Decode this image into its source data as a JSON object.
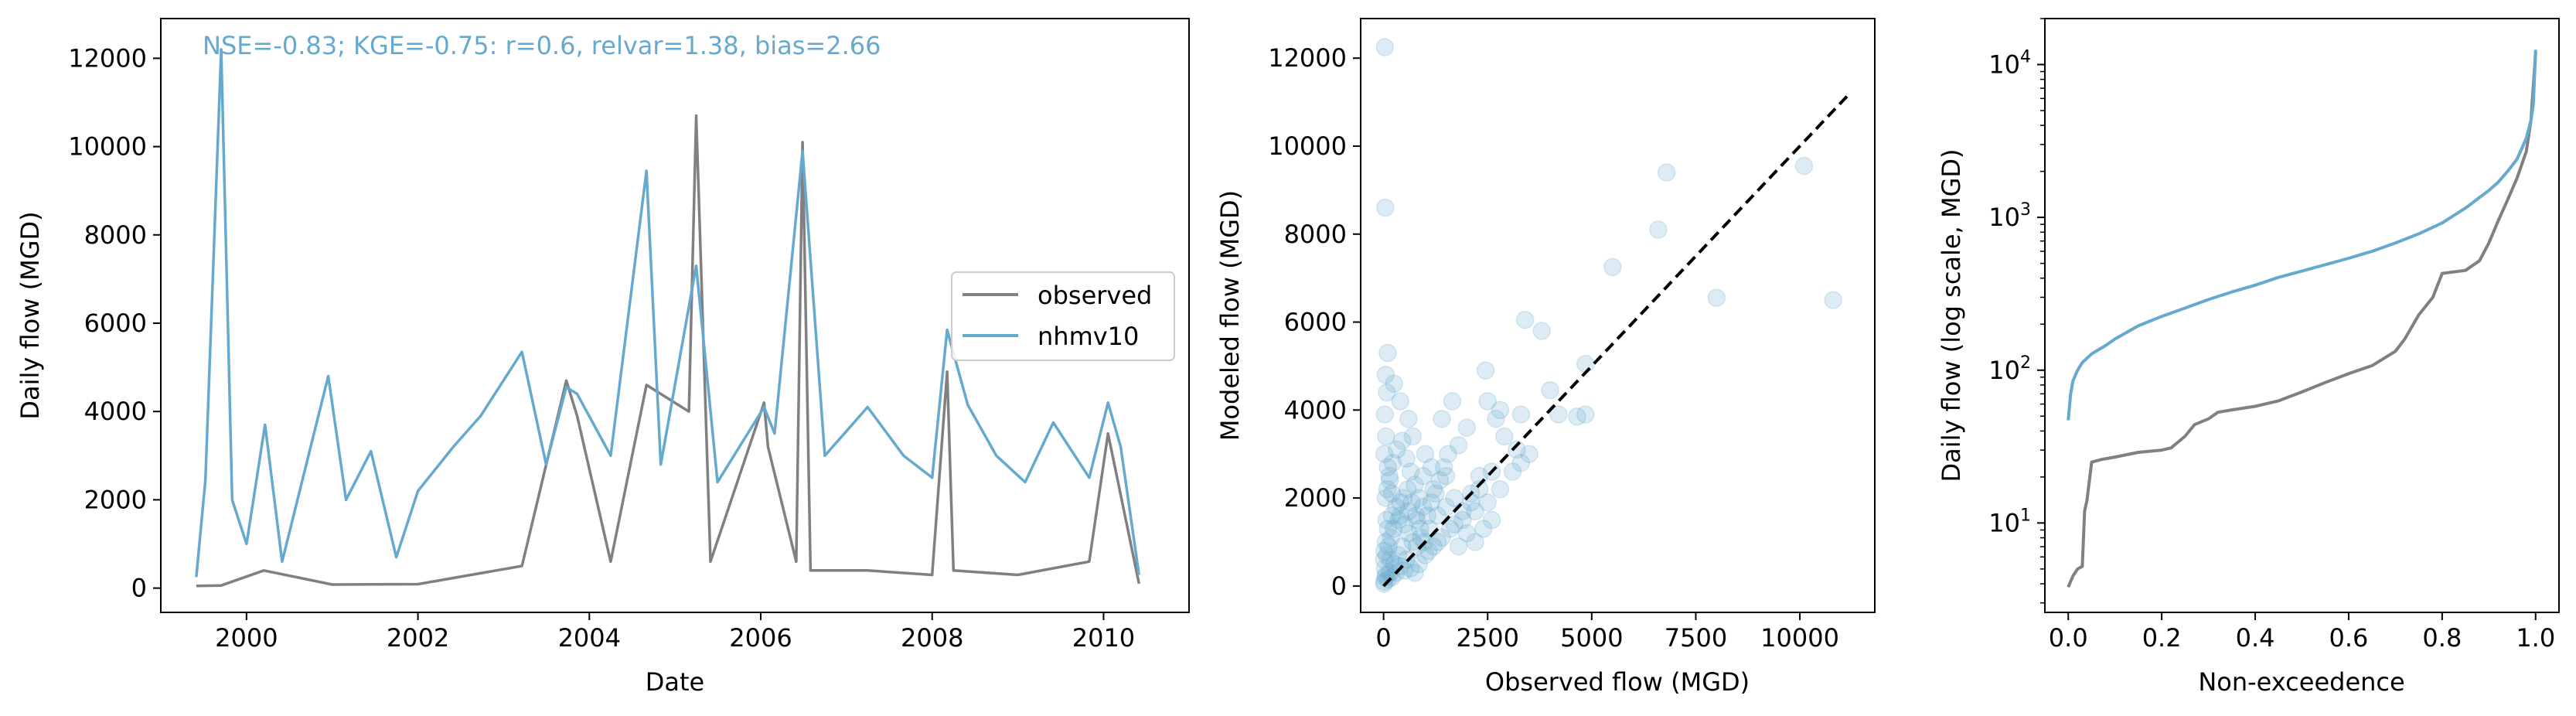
{
  "colors": {
    "observed": "#808080",
    "modeled": "#66a9cf",
    "identity_line": "#000000",
    "axes": "#000000"
  },
  "chart_data": [
    {
      "type": "line",
      "xlabel": "Date",
      "ylabel": "Daily flow (MGD)",
      "annotation": "NSE=-0.83; KGE=-0.75: r=0.6, relvar=1.38, bias=2.66",
      "xlim": [
        "1999-01-01",
        "2010-12-31"
      ],
      "ylim": [
        -550,
        12900
      ],
      "x_ticks": [
        {
          "value": "2000-01-01",
          "label": "2000"
        },
        {
          "value": "2002-01-01",
          "label": "2002"
        },
        {
          "value": "2004-01-01",
          "label": "2004"
        },
        {
          "value": "2006-01-01",
          "label": "2006"
        },
        {
          "value": "2008-01-01",
          "label": "2008"
        },
        {
          "value": "2010-01-01",
          "label": "2010"
        }
      ],
      "y_ticks": [
        0,
        2000,
        4000,
        6000,
        8000,
        10000,
        12000
      ],
      "legend": {
        "placement": "center-right",
        "entries": [
          "observed",
          "nhmv10"
        ]
      },
      "series": [
        {
          "name": "observed",
          "color": "#808080",
          "x": [
            "1999-06-01",
            "1999-09-15",
            "2000-03-15",
            "2001-01-01",
            "2002-01-01",
            "2003-03-20",
            "2003-09-25",
            "2003-11-10",
            "2004-04-01",
            "2004-09-01",
            "2005-03-01",
            "2005-04-01",
            "2005-06-01",
            "2006-01-15",
            "2006-02-01",
            "2006-06-01",
            "2006-06-28",
            "2006-08-01",
            "2007-04-01",
            "2008-01-01",
            "2008-03-05",
            "2008-04-01",
            "2009-01-01",
            "2009-11-01",
            "2010-01-20",
            "2010-06-01"
          ],
          "y": [
            50,
            60,
            400,
            80,
            90,
            500,
            4700,
            3900,
            600,
            4600,
            4000,
            10700,
            600,
            4200,
            3200,
            600,
            10100,
            400,
            400,
            300,
            4900,
            400,
            300,
            600,
            3500,
            100
          ]
        },
        {
          "name": "nhmv10",
          "color": "#66a9cf",
          "x": [
            "1999-06-01",
            "1999-07-10",
            "1999-09-15",
            "1999-11-01",
            "2000-01-01",
            "2000-03-20",
            "2000-06-01",
            "2000-12-15",
            "2001-03-01",
            "2001-06-15",
            "2001-10-01",
            "2002-01-01",
            "2002-06-01",
            "2002-09-25",
            "2003-03-20",
            "2003-07-01",
            "2003-09-25",
            "2003-11-10",
            "2004-04-01",
            "2004-09-01",
            "2004-11-01",
            "2005-04-01",
            "2005-07-01",
            "2006-01-15",
            "2006-03-01",
            "2006-06-28",
            "2006-10-01",
            "2007-04-01",
            "2007-09-01",
            "2008-01-01",
            "2008-03-05",
            "2008-06-01",
            "2008-10-01",
            "2009-02-01",
            "2009-06-01",
            "2009-11-01",
            "2010-01-20",
            "2010-03-15",
            "2010-06-01"
          ],
          "y": [
            250,
            2450,
            12200,
            2000,
            1000,
            3700,
            600,
            4800,
            2000,
            3100,
            700,
            2200,
            3200,
            3900,
            5350,
            2800,
            4550,
            4400,
            3000,
            9450,
            2800,
            7300,
            2400,
            4100,
            3500,
            9900,
            3000,
            4100,
            3000,
            2500,
            5850,
            4150,
            3000,
            2400,
            3750,
            2500,
            4200,
            3200,
            300
          ]
        }
      ]
    },
    {
      "type": "scatter",
      "xlabel": "Observed flow (MGD)",
      "ylabel": "Modeled flow (MGD)",
      "xlim": [
        -550,
        11800
      ],
      "ylim": [
        -600,
        12900
      ],
      "x_ticks": [
        0,
        2500,
        5000,
        7500,
        10000
      ],
      "y_ticks": [
        0,
        2000,
        4000,
        6000,
        8000,
        10000,
        12000
      ],
      "identity_line": [
        [
          0,
          0
        ],
        [
          11200,
          11200
        ]
      ],
      "points": [
        [
          30,
          12250
        ],
        [
          40,
          8600
        ],
        [
          6800,
          9400
        ],
        [
          10100,
          9550
        ],
        [
          6600,
          8100
        ],
        [
          5500,
          7250
        ],
        [
          8000,
          6550
        ],
        [
          10800,
          6500
        ],
        [
          3400,
          6050
        ],
        [
          3800,
          5800
        ],
        [
          4850,
          5050
        ],
        [
          2450,
          4900
        ],
        [
          4000,
          4450
        ],
        [
          4200,
          3900
        ],
        [
          4650,
          3850
        ],
        [
          4850,
          3900
        ],
        [
          3300,
          3900
        ],
        [
          2700,
          3800
        ],
        [
          2500,
          4200
        ],
        [
          2800,
          4000
        ],
        [
          2900,
          3400
        ],
        [
          3200,
          3100
        ],
        [
          3500,
          3000
        ],
        [
          2000,
          3600
        ],
        [
          1650,
          4200
        ],
        [
          1400,
          3800
        ],
        [
          1800,
          3200
        ],
        [
          1500,
          2500
        ],
        [
          1200,
          2200
        ],
        [
          2100,
          2100
        ],
        [
          2300,
          2500
        ],
        [
          1000,
          3000
        ],
        [
          700,
          3400
        ],
        [
          600,
          3800
        ],
        [
          400,
          4200
        ],
        [
          250,
          4600
        ],
        [
          100,
          5300
        ],
        [
          50,
          4800
        ],
        [
          80,
          4400
        ],
        [
          30,
          3900
        ],
        [
          60,
          3400
        ],
        [
          20,
          3000
        ],
        [
          100,
          2700
        ],
        [
          150,
          2400
        ],
        [
          200,
          2100
        ],
        [
          50,
          2000
        ],
        [
          300,
          1800
        ],
        [
          400,
          1600
        ],
        [
          500,
          1400
        ],
        [
          600,
          1200
        ],
        [
          700,
          1000
        ],
        [
          800,
          900
        ],
        [
          900,
          1100
        ],
        [
          1100,
          1300
        ],
        [
          1300,
          1600
        ],
        [
          1500,
          1800
        ],
        [
          1700,
          2000
        ],
        [
          1900,
          1500
        ],
        [
          2200,
          1700
        ],
        [
          2500,
          1900
        ],
        [
          1000,
          700
        ],
        [
          1200,
          900
        ],
        [
          1400,
          1100
        ],
        [
          1600,
          1300
        ],
        [
          2000,
          1200
        ],
        [
          800,
          1500
        ],
        [
          600,
          1700
        ],
        [
          400,
          1900
        ],
        [
          200,
          1600
        ],
        [
          100,
          1300
        ],
        [
          50,
          1000
        ],
        [
          20,
          800
        ],
        [
          10,
          600
        ],
        [
          30,
          400
        ],
        [
          60,
          250
        ],
        [
          100,
          150
        ],
        [
          150,
          300
        ],
        [
          250,
          500
        ],
        [
          350,
          700
        ],
        [
          450,
          900
        ],
        [
          550,
          600
        ],
        [
          650,
          400
        ],
        [
          750,
          300
        ],
        [
          850,
          500
        ],
        [
          200,
          200
        ],
        [
          300,
          300
        ],
        [
          400,
          450
        ],
        [
          500,
          350
        ],
        [
          120,
          900
        ],
        [
          180,
          1100
        ],
        [
          70,
          1500
        ],
        [
          90,
          2200
        ],
        [
          140,
          2500
        ],
        [
          220,
          2800
        ],
        [
          320,
          3100
        ],
        [
          450,
          3300
        ],
        [
          550,
          2900
        ],
        [
          650,
          2600
        ],
        [
          750,
          2300
        ],
        [
          850,
          2000
        ],
        [
          950,
          1800
        ],
        [
          1050,
          1600
        ],
        [
          1150,
          1900
        ],
        [
          1250,
          2100
        ],
        [
          1350,
          2400
        ],
        [
          1450,
          2700
        ],
        [
          1550,
          3000
        ],
        [
          1150,
          2700
        ],
        [
          950,
          2500
        ],
        [
          40,
          200
        ],
        [
          20,
          100
        ],
        [
          10,
          50
        ],
        [
          80,
          700
        ],
        [
          160,
          600
        ],
        [
          240,
          1300
        ],
        [
          360,
          1500
        ],
        [
          480,
          2000
        ],
        [
          580,
          2200
        ],
        [
          680,
          1900
        ],
        [
          780,
          1600
        ],
        [
          880,
          1300
        ],
        [
          980,
          1000
        ],
        [
          1080,
          800
        ],
        [
          1300,
          1000
        ],
        [
          1700,
          1400
        ],
        [
          1900,
          1700
        ],
        [
          2100,
          1900
        ],
        [
          2300,
          2200
        ],
        [
          2600,
          2600
        ],
        [
          2800,
          2200
        ],
        [
          3100,
          2600
        ],
        [
          3300,
          2800
        ],
        [
          1800,
          900
        ],
        [
          2200,
          1000
        ],
        [
          2400,
          1300
        ],
        [
          2600,
          1500
        ]
      ]
    },
    {
      "type": "line",
      "xlabel": "Non-exceedence",
      "ylabel": "Daily flow (log scale, MGD)",
      "yscale": "log",
      "xlim": [
        -0.05,
        1.05
      ],
      "ylim": [
        2.6,
        20000
      ],
      "x_ticks": [
        0.0,
        0.2,
        0.4,
        0.6,
        0.8,
        1.0
      ],
      "x_tick_labels": [
        "0.0",
        "0.2",
        "0.4",
        "0.6",
        "0.8",
        "1.0"
      ],
      "y_ticks": [
        10,
        100,
        1000,
        10000
      ],
      "y_tick_labels": [
        {
          "base": "10",
          "exp": "1"
        },
        {
          "base": "10",
          "exp": "2"
        },
        {
          "base": "10",
          "exp": "3"
        },
        {
          "base": "10",
          "exp": "4"
        }
      ],
      "series": [
        {
          "name": "observed",
          "color": "#808080",
          "x": [
            0,
            0.01,
            0.02,
            0.03,
            0.035,
            0.04,
            0.05,
            0.07,
            0.1,
            0.15,
            0.2,
            0.22,
            0.25,
            0.27,
            0.3,
            0.32,
            0.35,
            0.4,
            0.45,
            0.5,
            0.55,
            0.6,
            0.65,
            0.7,
            0.72,
            0.75,
            0.78,
            0.8,
            0.85,
            0.88,
            0.9,
            0.92,
            0.94,
            0.96,
            0.98,
            0.99,
            1.0
          ],
          "y": [
            3.8,
            4.5,
            5,
            5.2,
            12,
            14,
            25,
            26,
            27,
            29,
            30,
            31,
            37,
            44,
            48,
            53,
            55,
            58,
            63,
            72,
            83,
            95,
            107,
            133,
            160,
            230,
            300,
            430,
            450,
            520,
            680,
            950,
            1300,
            1800,
            2700,
            4300,
            12000
          ]
        },
        {
          "name": "nhmv10",
          "color": "#66a9cf",
          "x": [
            0,
            0.005,
            0.01,
            0.02,
            0.03,
            0.05,
            0.08,
            0.1,
            0.15,
            0.2,
            0.25,
            0.3,
            0.35,
            0.4,
            0.45,
            0.5,
            0.55,
            0.6,
            0.65,
            0.7,
            0.75,
            0.8,
            0.85,
            0.88,
            0.9,
            0.92,
            0.94,
            0.96,
            0.97,
            0.98,
            0.99,
            0.995,
            1.0
          ],
          "y": [
            47,
            70,
            85,
            100,
            112,
            128,
            145,
            160,
            195,
            225,
            255,
            290,
            325,
            360,
            405,
            445,
            490,
            540,
            600,
            680,
            780,
            920,
            1150,
            1350,
            1500,
            1700,
            2000,
            2400,
            2800,
            3300,
            4300,
            5500,
            12500
          ]
        }
      ]
    }
  ]
}
